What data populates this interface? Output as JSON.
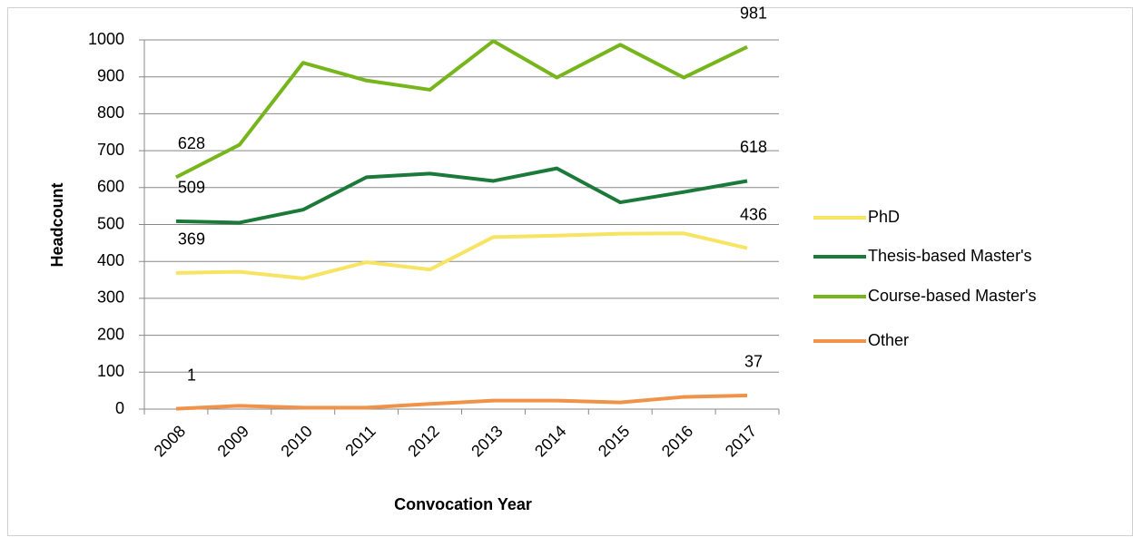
{
  "chart_data": {
    "type": "line",
    "x_label": "Convocation Year",
    "y_label": "Headcount",
    "categories": [
      "2008",
      "2009",
      "2010",
      "2011",
      "2012",
      "2013",
      "2014",
      "2015",
      "2016",
      "2017"
    ],
    "series": [
      {
        "name": "PhD",
        "color": "#f7e463",
        "values": [
          369,
          372,
          354,
          398,
          378,
          466,
          470,
          475,
          476,
          436
        ]
      },
      {
        "name": "Thesis-based Master's",
        "color": "#1b7a3a",
        "values": [
          509,
          505,
          540,
          628,
          638,
          618,
          652,
          560,
          588,
          618
        ]
      },
      {
        "name": "Course-based Master's",
        "color": "#77b51c",
        "values": [
          628,
          716,
          938,
          890,
          865,
          997,
          898,
          987,
          898,
          981
        ]
      },
      {
        "name": "Other",
        "color": "#f0924a",
        "values": [
          1,
          9,
          4,
          4,
          14,
          23,
          23,
          18,
          33,
          37
        ]
      }
    ],
    "ylim": [
      0,
      1000
    ],
    "yticks": [
      0,
      100,
      200,
      300,
      400,
      500,
      600,
      700,
      800,
      900,
      1000
    ],
    "grid": true,
    "legend": "right"
  }
}
